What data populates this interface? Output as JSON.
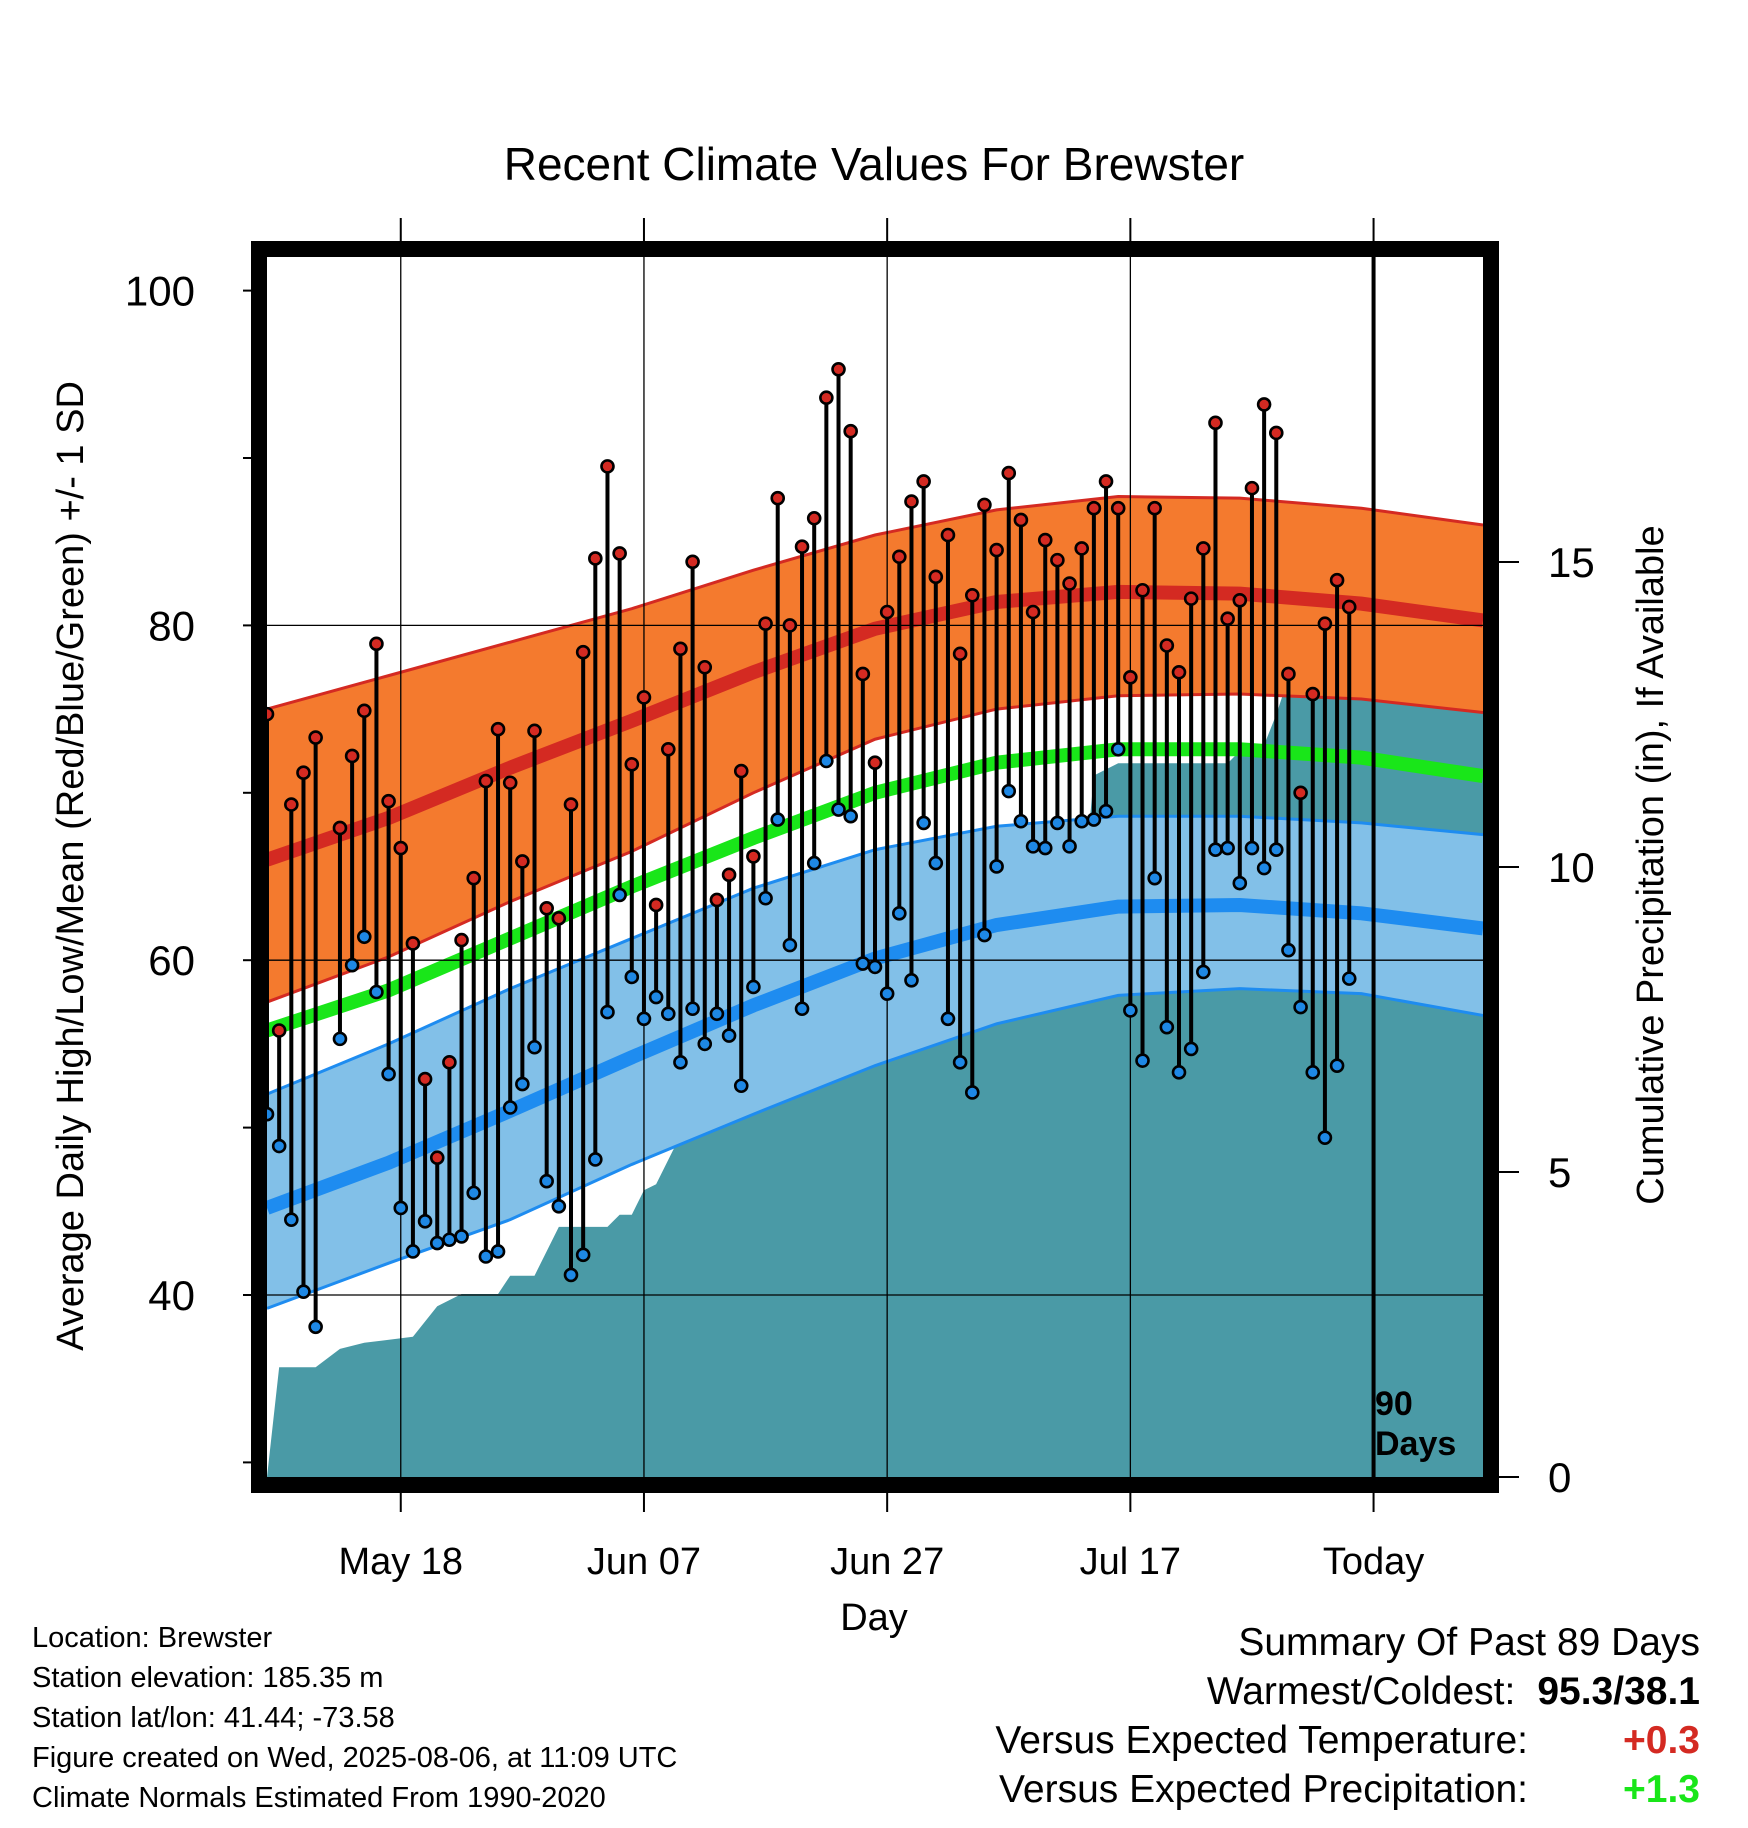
{
  "chart_data": {
    "type": "line",
    "title": "Recent Climate Values For Brewster",
    "xlabel": "Day",
    "ylabel": "Average Daily High/Low/Mean (Red/Blue/Green) +/- 1 SD",
    "y2label": "Cumulative Precipitation (in), If Available",
    "ylim": [
      26,
      100
    ],
    "y2lim": [
      0,
      20
    ],
    "yticks": [
      "100",
      "80",
      "60",
      "40"
    ],
    "y2ticks": [
      "15",
      "10",
      "5",
      "0"
    ],
    "xlim": [
      0,
      100
    ],
    "xticks": [
      {
        "x": 11,
        "label": "May 18"
      },
      {
        "x": 31,
        "label": "Jun 07"
      },
      {
        "x": 51,
        "label": "Jun 27"
      },
      {
        "x": 71,
        "label": "Jul 17"
      },
      {
        "x": 91,
        "label": "Today"
      }
    ],
    "today_x": 91,
    "today_label": "90\nDays",
    "grid": true,
    "colors": {
      "high_band": "#F47A2E",
      "high_mean": "#D42A22",
      "low_band": "#82C0E8",
      "low_mean": "#1E8CF0",
      "mean_line": "#19E619",
      "precip": "#4A9AA6",
      "high_dot": "#D42A22",
      "low_dot": "#1E88E5"
    },
    "normals": {
      "x": [
        0,
        10,
        20,
        30,
        40,
        50,
        60,
        70,
        80,
        90,
        100
      ],
      "high_mean": [
        66.0,
        68.5,
        71.5,
        74.3,
        77.2,
        79.8,
        81.4,
        82.0,
        81.9,
        81.3,
        80.3
      ],
      "high_upper": [
        75.0,
        77.0,
        79.0,
        81.0,
        83.3,
        85.4,
        86.9,
        87.7,
        87.6,
        87.0,
        86.0
      ],
      "high_lower": [
        57.5,
        60.2,
        63.5,
        66.5,
        70.0,
        73.2,
        75.0,
        75.8,
        75.9,
        75.6,
        74.8
      ],
      "mean": [
        55.8,
        58.2,
        61.3,
        64.4,
        67.3,
        70.0,
        71.8,
        72.6,
        72.6,
        72.1,
        71.0
      ],
      "low_mean": [
        45.2,
        47.9,
        51.0,
        54.2,
        57.3,
        60.1,
        62.1,
        63.2,
        63.3,
        62.8,
        61.9
      ],
      "low_upper": [
        52.0,
        55.0,
        58.3,
        61.3,
        64.3,
        66.6,
        68.0,
        68.6,
        68.6,
        68.2,
        67.5
      ],
      "low_lower": [
        39.2,
        41.9,
        44.5,
        47.8,
        50.8,
        53.7,
        56.2,
        57.9,
        58.3,
        58.0,
        56.7
      ]
    },
    "daily": {
      "x": [
        0,
        1,
        2,
        3,
        4,
        5,
        6,
        7,
        8,
        9,
        10,
        11,
        12,
        13,
        14,
        15,
        16,
        17,
        18,
        19,
        20,
        21,
        22,
        23,
        24,
        25,
        26,
        27,
        28,
        29,
        30,
        31,
        32,
        33,
        34,
        35,
        36,
        37,
        38,
        39,
        40,
        41,
        42,
        43,
        44,
        45,
        46,
        47,
        48,
        49,
        50,
        51,
        52,
        53,
        54,
        55,
        56,
        57,
        58,
        59,
        60,
        61,
        62,
        63,
        64,
        65,
        66,
        67,
        68,
        69,
        70,
        71,
        72,
        73,
        74,
        75,
        76,
        77,
        78,
        79,
        80,
        81,
        82,
        83,
        84,
        85,
        86,
        87,
        88,
        89,
        90
      ],
      "high": [
        74.7,
        55.8,
        69.3,
        71.2,
        73.3,
        null,
        67.9,
        72.2,
        74.9,
        78.9,
        69.5,
        66.7,
        61.0,
        52.9,
        48.2,
        53.9,
        61.2,
        64.9,
        70.7,
        73.8,
        70.6,
        65.9,
        73.7,
        63.1,
        62.5,
        69.3,
        78.4,
        84.0,
        89.5,
        84.3,
        71.7,
        75.7,
        63.3,
        72.6,
        78.6,
        83.8,
        77.5,
        63.6,
        65.1,
        71.3,
        66.2,
        80.1,
        87.6,
        80.0,
        84.7,
        86.4,
        93.6,
        95.3,
        91.6,
        77.1,
        71.8,
        80.8,
        84.1,
        87.4,
        88.6,
        82.9,
        85.4,
        78.3,
        81.8,
        87.2,
        84.5,
        89.1,
        86.3,
        80.8,
        85.1,
        83.9,
        82.5,
        84.6,
        87.0,
        88.6,
        87.0,
        76.9,
        82.1,
        87.0,
        78.8,
        77.2,
        81.6,
        84.6,
        92.1,
        80.4,
        81.5,
        88.2,
        93.2,
        91.5,
        77.1,
        70.0,
        75.9,
        80.1,
        82.7,
        81.1,
        null
      ],
      "low": [
        50.8,
        48.9,
        44.5,
        40.2,
        38.1,
        null,
        55.3,
        59.7,
        61.4,
        58.1,
        53.2,
        45.2,
        42.6,
        44.4,
        43.1,
        43.3,
        43.5,
        46.1,
        42.3,
        42.6,
        51.2,
        52.6,
        54.8,
        46.8,
        45.3,
        41.2,
        42.4,
        48.1,
        56.9,
        63.9,
        59.0,
        56.5,
        57.8,
        56.8,
        53.9,
        57.1,
        55.0,
        56.8,
        55.5,
        52.5,
        58.4,
        63.7,
        68.4,
        60.9,
        57.1,
        65.8,
        71.9,
        69.0,
        68.6,
        59.8,
        59.6,
        58.0,
        62.8,
        58.8,
        68.2,
        65.8,
        56.5,
        53.9,
        52.1,
        61.5,
        65.6,
        70.1,
        68.3,
        66.8,
        66.7,
        68.2,
        66.8,
        68.3,
        68.4,
        68.9,
        72.6,
        57.0,
        54.0,
        64.9,
        56.0,
        53.3,
        54.7,
        59.3,
        66.6,
        66.7,
        64.6,
        66.7,
        65.5,
        66.6,
        60.6,
        57.2,
        53.3,
        49.4,
        53.7,
        58.9,
        null
      ]
    },
    "precip": {
      "x": [
        0,
        1,
        4,
        6,
        8,
        12,
        14,
        16,
        19,
        20,
        22,
        24,
        28,
        29,
        30,
        31,
        32,
        34,
        36,
        38,
        40,
        41,
        42,
        44,
        45,
        48,
        49,
        50,
        51,
        52,
        53,
        54,
        55,
        56,
        57,
        62,
        65,
        66,
        67,
        68,
        69,
        70,
        75,
        79,
        80,
        82,
        83,
        84,
        86,
        90,
        100
      ],
      "y": [
        0.0,
        1.8,
        1.8,
        2.1,
        2.2,
        2.3,
        2.8,
        3.0,
        3.0,
        3.3,
        3.3,
        4.1,
        4.1,
        4.3,
        4.3,
        4.7,
        4.8,
        5.6,
        5.6,
        5.8,
        6.2,
        6.6,
        6.7,
        7.0,
        7.0,
        7.2,
        7.2,
        7.2,
        7.3,
        7.3,
        7.4,
        8.8,
        9.0,
        9.0,
        9.0,
        9.0,
        9.0,
        9.1,
        9.3,
        11.5,
        11.6,
        11.7,
        11.7,
        11.7,
        11.9,
        12.0,
        12.5,
        13.1,
        13.1,
        13.1,
        13.1
      ]
    }
  },
  "footer_left": {
    "location": "Location: Brewster",
    "elevation": "Station elevation: 185.35 m",
    "latlon": "Station lat/lon: 41.44; -73.58",
    "created": "Figure created on Wed, 2025-08-06, at 11:09 UTC",
    "normals_note": "Climate Normals Estimated From 1990-2020"
  },
  "summary": {
    "heading": "Summary Of Past 89 Days",
    "warmest_label": "Warmest/Coldest:",
    "warmest_value": "95.3/38.1",
    "temp_label": "Versus Expected Temperature:",
    "temp_value": "+0.3",
    "temp_color": "#D42A22",
    "precip_label": "Versus Expected Precipitation:",
    "precip_value": "+1.3",
    "precip_color": "#19E619"
  }
}
